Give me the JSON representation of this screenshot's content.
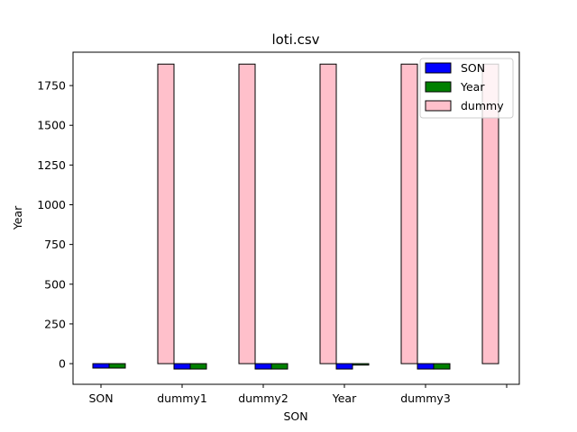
{
  "chart_data": {
    "type": "bar",
    "title": "loti.csv",
    "xlabel": "SON",
    "ylabel": "Year",
    "categories": [
      "SON",
      "dummy1",
      "dummy2",
      "Year",
      "dummy3",
      ""
    ],
    "series": [
      {
        "name": "SON",
        "color": "#0000ff",
        "values": [
          -28,
          -34,
          -34,
          -34,
          -34,
          null
        ]
      },
      {
        "name": "Year",
        "color": "#008000",
        "values": [
          -28,
          -34,
          -34,
          -9,
          -34,
          null
        ]
      },
      {
        "name": "dummy",
        "color": "#ffc0cb",
        "values": [
          null,
          1885,
          1885,
          1885,
          1885,
          1885
        ]
      }
    ],
    "ylim": [
      -130,
      1960
    ],
    "yticks": [
      0,
      250,
      500,
      750,
      1000,
      1250,
      1500,
      1750
    ],
    "grid": false,
    "legend_position": "top-right"
  }
}
